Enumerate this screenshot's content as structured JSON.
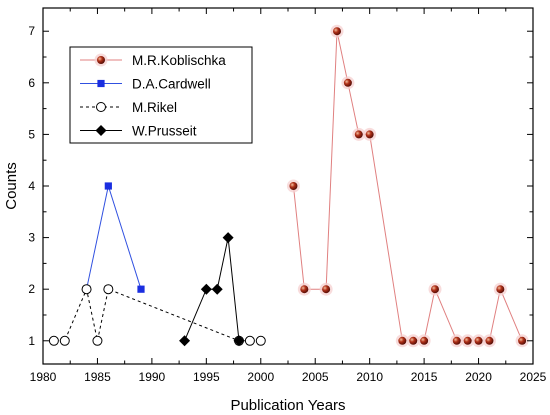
{
  "chart_data": {
    "type": "line",
    "title": "",
    "xlabel": "Publication Years",
    "ylabel": "Counts",
    "xlim": [
      1980,
      2025
    ],
    "ylim": [
      0.55,
      7.45
    ],
    "xticks": [
      1980,
      1985,
      1990,
      1995,
      2000,
      2005,
      2010,
      2015,
      2020,
      2025
    ],
    "yticks": [
      1,
      2,
      3,
      4,
      5,
      6,
      7
    ],
    "grid": false,
    "legend_position": "upper-left",
    "series": [
      {
        "name": "M.R.Koblischka",
        "color": "#e08080",
        "marker": "ball",
        "marker_color": "#b03018",
        "line_style": "solid",
        "points": [
          [
            2003,
            4
          ],
          [
            2004,
            2
          ],
          [
            2006,
            2
          ],
          [
            2007,
            7
          ],
          [
            2008,
            6
          ],
          [
            2009,
            5
          ],
          [
            2010,
            5
          ],
          [
            2013,
            1
          ],
          [
            2014,
            1
          ],
          [
            2015,
            1
          ],
          [
            2016,
            2
          ],
          [
            2018,
            1
          ],
          [
            2019,
            1
          ],
          [
            2020,
            1
          ],
          [
            2021,
            1
          ],
          [
            2022,
            2
          ],
          [
            2024,
            1
          ]
        ]
      },
      {
        "name": "D.A.Cardwell",
        "color": "#3050e0",
        "marker": "square",
        "marker_color": "#1a2ee0",
        "line_style": "solid",
        "points": [
          [
            1984,
            2
          ],
          [
            1986,
            4
          ],
          [
            1989,
            2
          ]
        ]
      },
      {
        "name": "M.Rikel",
        "color": "#000000",
        "marker": "circle-open",
        "marker_color": "#000000",
        "line_style": "dashed",
        "points": [
          [
            1981,
            1
          ],
          [
            1982,
            1
          ],
          [
            1984,
            2
          ],
          [
            1985,
            1
          ],
          [
            1986,
            2
          ],
          [
            1998,
            1
          ],
          [
            1999,
            1
          ],
          [
            2000,
            1
          ]
        ]
      },
      {
        "name": "W.Prusseit",
        "color": "#000000",
        "marker": "diamond",
        "marker_color": "#000000",
        "line_style": "solid",
        "points": [
          [
            1993,
            1
          ],
          [
            1995,
            2
          ],
          [
            1996,
            2
          ],
          [
            1997,
            3
          ],
          [
            1998,
            1
          ]
        ]
      }
    ]
  }
}
